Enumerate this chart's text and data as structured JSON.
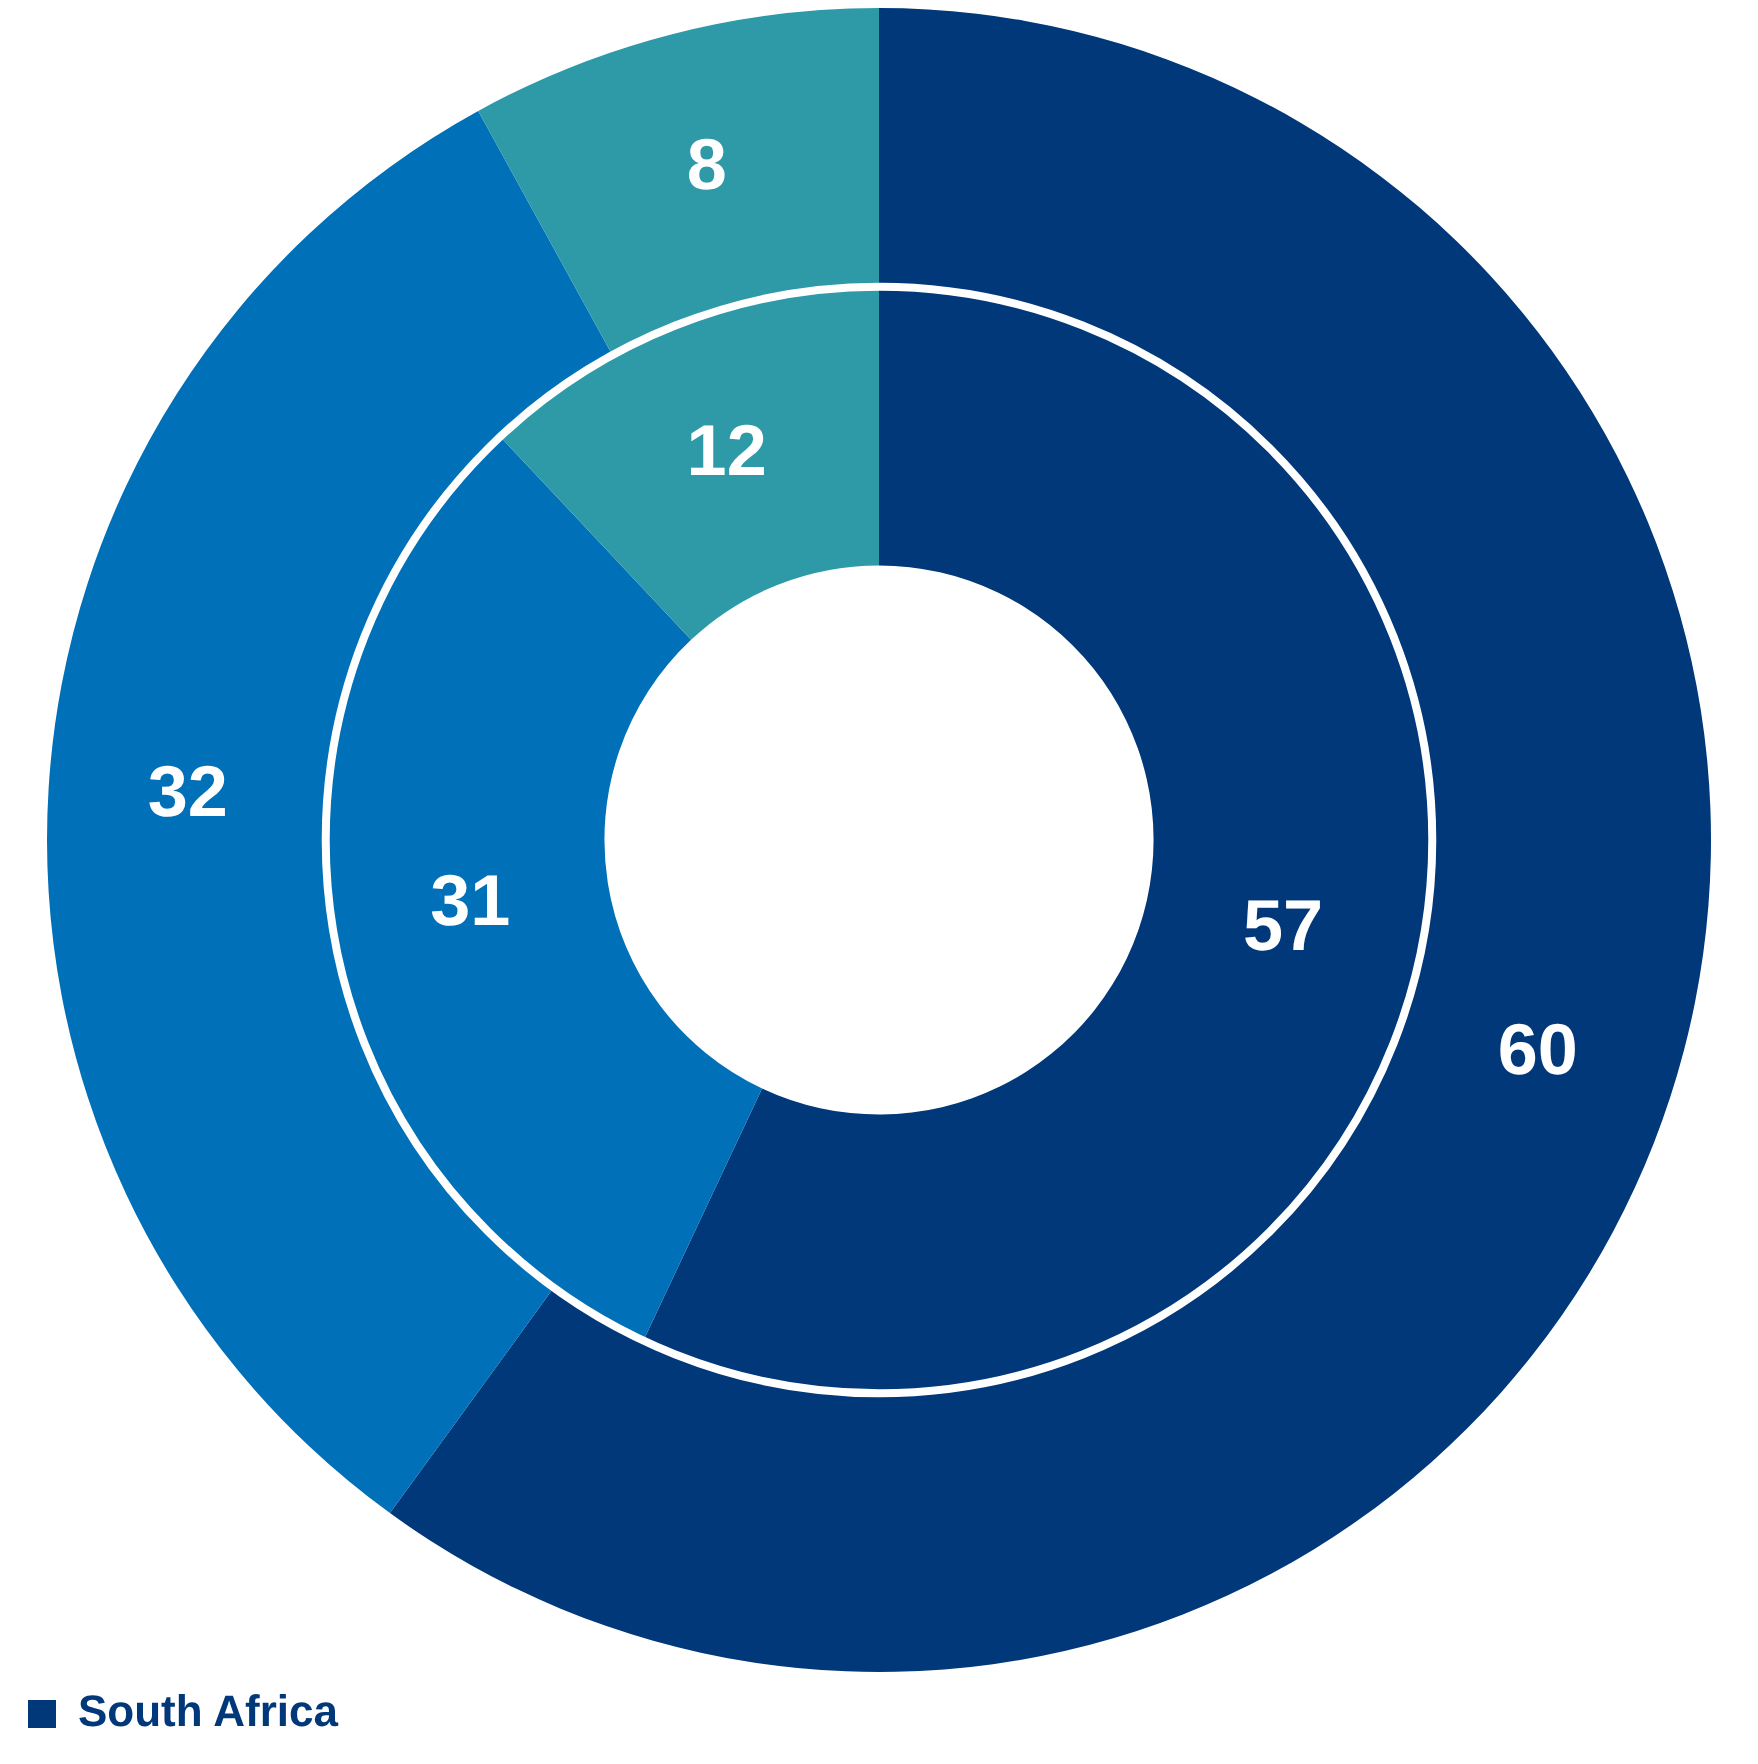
{
  "chart_data": {
    "type": "donut",
    "categories": [
      "South Africa",
      null,
      null
    ],
    "colors": [
      "#00387a",
      "#0070b8",
      "#2e9aa8"
    ],
    "series": [
      {
        "values": [
          60,
          32,
          8
        ]
      },
      {
        "values": [
          57,
          31,
          12
        ]
      }
    ],
    "data_labels": true,
    "legend": "bottom left"
  }
}
